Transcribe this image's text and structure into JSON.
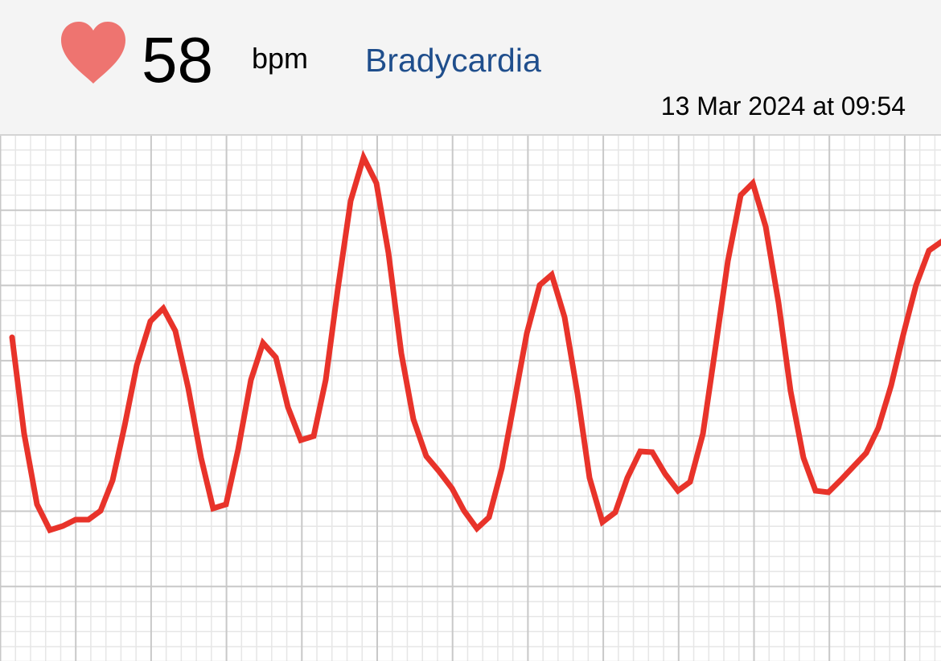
{
  "header": {
    "icon": "heart-icon",
    "heart_rate": "58",
    "unit": "bpm",
    "classification": "Bradycardia",
    "timestamp": "13 Mar 2024 at 09:54"
  },
  "colors": {
    "heart": "#ee7470",
    "classification": "#1f4e8c",
    "trace": "#e8332a",
    "grid_major": "#c8c8c8",
    "grid_minor": "#e6e6e6"
  }
}
